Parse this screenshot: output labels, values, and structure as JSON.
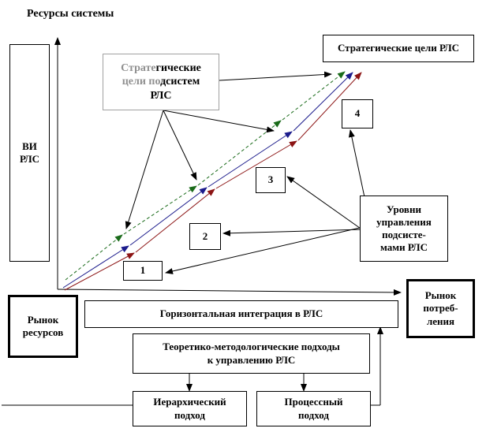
{
  "axis_label": "Ресурсы системы",
  "vi_label": "ВИ\nРЛС",
  "strategic_goals_label": "Стратегические цели РЛС",
  "subsystem_goals": {
    "part1_gray": "Страте",
    "part1_black": "гические",
    "part2_gray": "цели по",
    "part2_black": "дсистем",
    "part3": "РЛС"
  },
  "levels_label": "Уровни\nуправления\nподсисте-\nмами РЛС",
  "level_numbers": [
    "1",
    "2",
    "3",
    "4"
  ],
  "resource_market_label": "Рынок\nресурсов",
  "consumer_market_label": "Рынок\nпотреб-\nления",
  "horizontal_integration_label": "Горизонтальная интеграция в РЛС",
  "theoretical_approaches_label": "Теоретико-методологические подходы\nк управлению РЛС",
  "hierarchical_approach_label": "Иерархический\nподход",
  "process_approach_label": "Процессный\nподход",
  "colors": {
    "green": "#1a6b1a",
    "blue": "#1c1c8c",
    "red": "#8c1414",
    "black": "#000000",
    "gray": "#a0a0a0"
  }
}
